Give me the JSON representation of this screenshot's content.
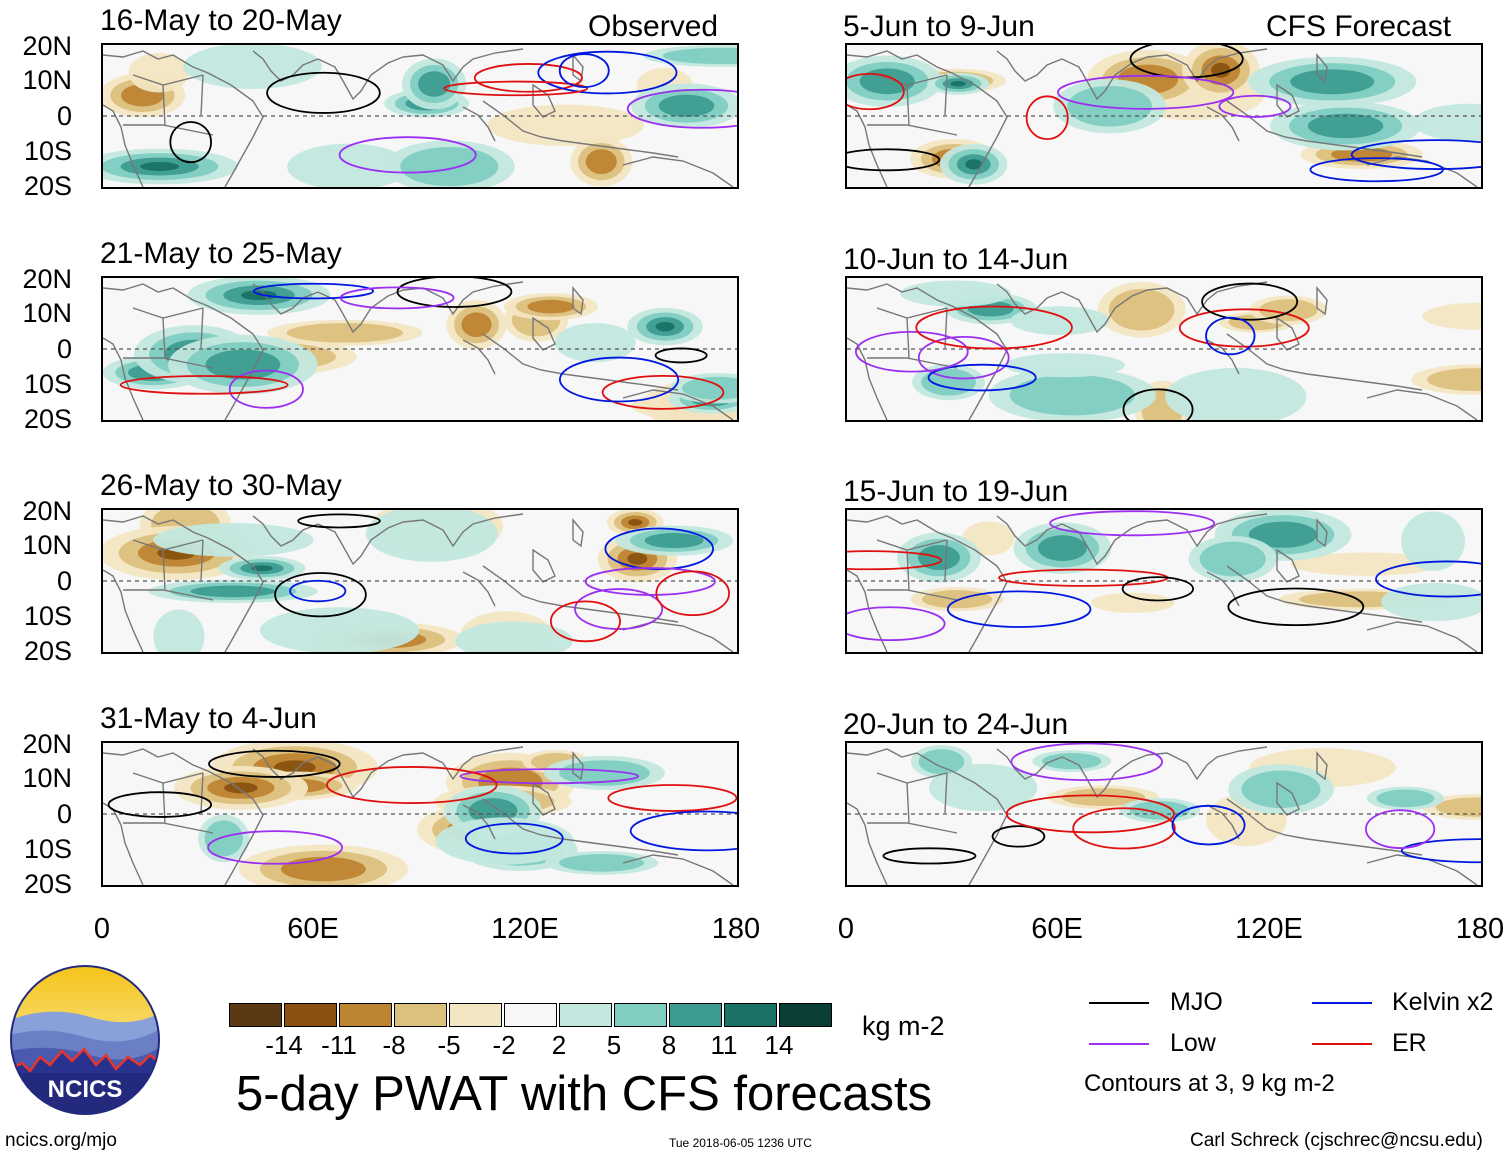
{
  "headers": {
    "observed": "Observed",
    "forecast": "CFS Forecast"
  },
  "panels_left": [
    {
      "title": "16-May to 20-May"
    },
    {
      "title": "21-May to 25-May"
    },
    {
      "title": "26-May to 30-May"
    },
    {
      "title": "31-May to 4-Jun"
    }
  ],
  "panels_right": [
    {
      "title": "5-Jun to 9-Jun"
    },
    {
      "title": "10-Jun to 14-Jun"
    },
    {
      "title": "15-Jun to 19-Jun"
    },
    {
      "title": "20-Jun to 24-Jun"
    }
  ],
  "lat_labels": [
    "20N",
    "10N",
    "0",
    "10S",
    "20S"
  ],
  "lon_labels": [
    "0",
    "60E",
    "120E",
    "180"
  ],
  "colorbar": {
    "colors": [
      "#5b3a13",
      "#8a5211",
      "#bd8432",
      "#dcc07e",
      "#f3e6c2",
      "#f7f7f7",
      "#c2e8df",
      "#80cdc1",
      "#3d9c91",
      "#1a7165",
      "#0b3f35"
    ],
    "labels": [
      "-14",
      "-11",
      "-8",
      "-5",
      "-2",
      "2",
      "5",
      "8",
      "11",
      "14"
    ],
    "units": "kg m-2"
  },
  "legend": {
    "items": [
      {
        "label": "MJO",
        "color": "#000000"
      },
      {
        "label": "Kelvin x2",
        "color": "#0018e0"
      },
      {
        "label": "Low",
        "color": "#9b30f0"
      },
      {
        "label": "ER",
        "color": "#e01010"
      }
    ],
    "note": "Contours at 3, 9 kg m-2"
  },
  "main_title": "5-day PWAT with CFS forecasts",
  "logo_text": "NCICS",
  "footer": {
    "left": "ncics.org/mjo",
    "center": "Tue 2018-06-05 1236 UTC",
    "right": "Carl Schreck (cjschrec@ncsu.edu)"
  }
}
